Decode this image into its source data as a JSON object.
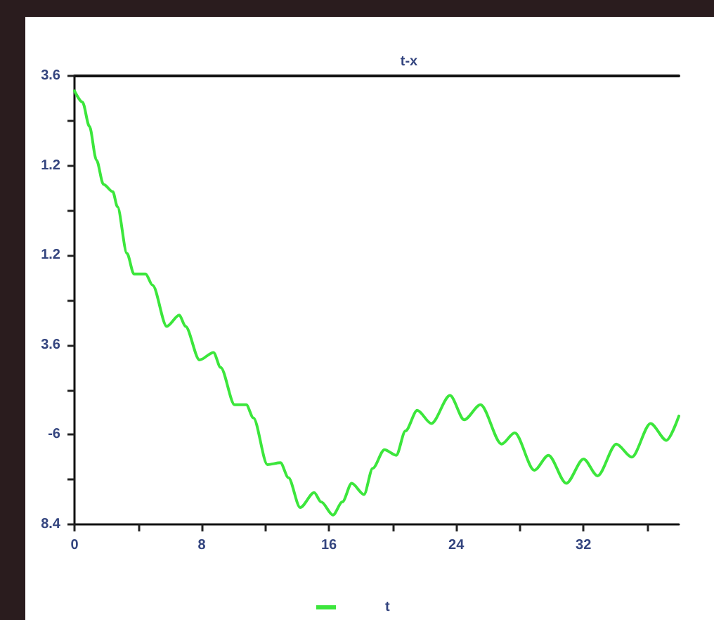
{
  "chart_data": {
    "type": "line",
    "title": "t-x",
    "x": [
      0,
      0.5,
      0.94,
      1.38,
      1.82,
      2.41,
      2.7,
      3.3,
      3.74,
      4.47,
      4.91,
      5.8,
      6.59,
      6.98,
      7.86,
      8.74,
      9.19,
      10.07,
      10.8,
      11.25,
      12.13,
      12.95,
      13.45,
      14.19,
      15.07,
      15.51,
      16.25,
      16.84,
      17.43,
      18.2,
      18.75,
      19.49,
      20.23,
      20.81,
      21.55,
      22.44,
      23.61,
      24.5,
      25.53,
      26.85,
      27.68,
      28.91,
      29.8,
      30.92,
      32.01,
      32.89,
      34.07,
      35.04,
      36.22,
      37.22,
      38
    ],
    "series": [
      {
        "name": "t",
        "color": "#3ce63c",
        "values": [
          3.2,
          2.9,
          2.25,
          1.35,
          0.7,
          0.5,
          0.1,
          -1.15,
          -1.7,
          -1.7,
          -2.0,
          -3.1,
          -2.8,
          -3.1,
          -4.0,
          -3.8,
          -4.2,
          -5.2,
          -5.2,
          -5.55,
          -6.8,
          -6.75,
          -7.15,
          -7.95,
          -7.55,
          -7.8,
          -8.15,
          -7.8,
          -7.3,
          -7.6,
          -6.9,
          -6.4,
          -6.55,
          -5.9,
          -5.35,
          -5.7,
          -4.95,
          -5.6,
          -5.2,
          -6.25,
          -5.95,
          -6.95,
          -6.55,
          -7.3,
          -6.65,
          -7.1,
          -6.25,
          -6.6,
          -5.7,
          -6.15,
          -5.5
        ]
      }
    ],
    "xlim": [
      0,
      38
    ],
    "xticks": [
      0,
      {
        "value": 4,
        "label": null
      },
      8,
      {
        "value": 12,
        "label": null
      },
      16,
      {
        "value": 20,
        "label": null
      },
      24,
      {
        "value": 28,
        "label": null
      },
      32,
      {
        "value": 36,
        "label": null
      }
    ],
    "ylim": [
      -8.4,
      3.6
    ],
    "yticks": [
      {
        "value": -8.4,
        "label": "8.4"
      },
      {
        "value": -7.2,
        "label": null
      },
      -6,
      {
        "value": -4.8,
        "label": null
      },
      {
        "value": -3.6,
        "label": "3.6"
      },
      {
        "value": -2.4,
        "label": null
      },
      {
        "value": -1.2,
        "label": "1.2"
      },
      {
        "value": 0,
        "label": null
      },
      1.2,
      {
        "value": 2.4,
        "label": null
      },
      3.6
    ],
    "marker": "none",
    "legend": "bottom"
  }
}
